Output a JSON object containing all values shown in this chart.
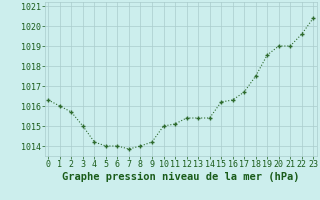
{
  "x": [
    0,
    1,
    2,
    3,
    4,
    5,
    6,
    7,
    8,
    9,
    10,
    11,
    12,
    13,
    14,
    15,
    16,
    17,
    18,
    19,
    20,
    21,
    22,
    23
  ],
  "y": [
    1016.3,
    1016.0,
    1015.7,
    1015.0,
    1014.2,
    1014.0,
    1014.0,
    1013.85,
    1014.0,
    1014.2,
    1015.0,
    1015.1,
    1015.4,
    1015.4,
    1015.4,
    1016.2,
    1016.3,
    1016.7,
    1017.5,
    1018.55,
    1019.0,
    1019.0,
    1019.6,
    1020.4
  ],
  "ylim": [
    1013.5,
    1021.2
  ],
  "yticks": [
    1014,
    1015,
    1016,
    1017,
    1018,
    1019,
    1020,
    1021
  ],
  "xticks": [
    0,
    1,
    2,
    3,
    4,
    5,
    6,
    7,
    8,
    9,
    10,
    11,
    12,
    13,
    14,
    15,
    16,
    17,
    18,
    19,
    20,
    21,
    22,
    23
  ],
  "xlabel": "Graphe pression niveau de la mer (hPa)",
  "line_color": "#2d6a2d",
  "marker": "+",
  "background_color": "#cceeed",
  "grid_color": "#aacccc",
  "text_color": "#1a5c1a",
  "xlabel_fontsize": 7.5,
  "tick_fontsize": 6.0,
  "xlim_left": -0.3,
  "xlim_right": 23.3
}
